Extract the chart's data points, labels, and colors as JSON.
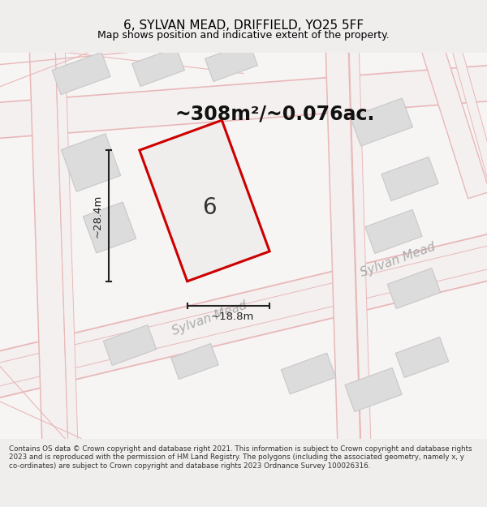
{
  "title": "6, SYLVAN MEAD, DRIFFIELD, YO25 5FF",
  "subtitle": "Map shows position and indicative extent of the property.",
  "area_text": "~308m²/~0.076ac.",
  "dim_width": "~18.8m",
  "dim_height": "~28.4m",
  "plot_number": "6",
  "road_label1": "Sylvan Mead",
  "road_label2": "Sylvan Mead",
  "footer": "Contains OS data © Crown copyright and database right 2021. This information is subject to Crown copyright and database rights 2023 and is reproduced with the permission of HM Land Registry. The polygons (including the associated geometry, namely x, y co-ordinates) are subject to Crown copyright and database rights 2023 Ordnance Survey 100026316.",
  "bg_color": "#f0eded",
  "map_bg": "#f7f4f4",
  "road_color": "#e8b8b8",
  "road_fill": "#f5f0f0",
  "plot_fill": "#f0eded",
  "plot_edge": "#cc0000",
  "building_fill": "#dcdcdc",
  "building_edge": "#c8c8c8",
  "dim_color": "#222222",
  "title_color": "#000000",
  "road_text_color": "#aaaaaa",
  "footer_color": "#333333"
}
